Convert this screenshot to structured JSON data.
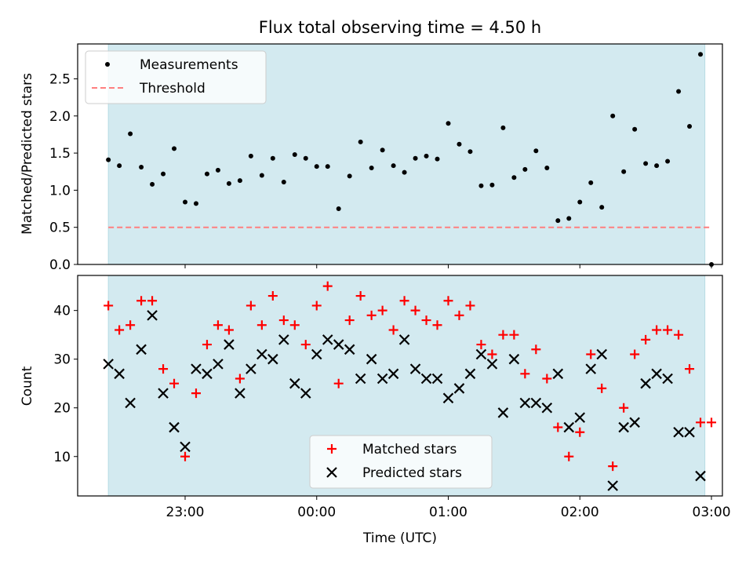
{
  "chart_data": [
    {
      "type": "scatter",
      "title": "Flux total observing time = 4.50 h",
      "xlabel": "",
      "ylabel": "Matched/Predicted stars",
      "ylim": [
        0,
        2.97
      ],
      "yticks": [
        0.0,
        0.5,
        1.0,
        1.5,
        2.0,
        2.5
      ],
      "ytick_labels": [
        "0.0",
        "0.5",
        "1.0",
        "1.5",
        "2.0",
        "2.5"
      ],
      "xlim": [
        "22:11",
        "03:05"
      ],
      "xticks": [
        "23:00",
        "00:00",
        "01:00",
        "02:00",
        "03:00"
      ],
      "shaded_span": [
        "22:25",
        "02:57"
      ],
      "shade_color": "#d3eaf0",
      "legend": {
        "position": "top-left",
        "entries": [
          "Measurements",
          "Threshold"
        ]
      },
      "series": [
        {
          "name": "Measurements",
          "marker": "dot",
          "color": "#000000",
          "points": [
            [
              "22:25",
              1.41
            ],
            [
              "22:30",
              1.33
            ],
            [
              "22:35",
              1.76
            ],
            [
              "22:40",
              1.31
            ],
            [
              "22:45",
              1.08
            ],
            [
              "22:50",
              1.22
            ],
            [
              "22:55",
              1.56
            ],
            [
              "23:00",
              0.84
            ],
            [
              "23:05",
              0.82
            ],
            [
              "23:10",
              1.22
            ],
            [
              "23:15",
              1.27
            ],
            [
              "23:20",
              1.09
            ],
            [
              "23:25",
              1.13
            ],
            [
              "23:30",
              1.46
            ],
            [
              "23:35",
              1.2
            ],
            [
              "23:40",
              1.43
            ],
            [
              "23:45",
              1.11
            ],
            [
              "23:50",
              1.48
            ],
            [
              "23:55",
              1.43
            ],
            [
              "00:00",
              1.32
            ],
            [
              "00:05",
              1.32
            ],
            [
              "00:10",
              0.75
            ],
            [
              "00:15",
              1.19
            ],
            [
              "00:20",
              1.65
            ],
            [
              "00:25",
              1.3
            ],
            [
              "00:30",
              1.54
            ],
            [
              "00:35",
              1.33
            ],
            [
              "00:40",
              1.24
            ],
            [
              "00:45",
              1.43
            ],
            [
              "00:50",
              1.46
            ],
            [
              "00:55",
              1.42
            ],
            [
              "01:00",
              1.9
            ],
            [
              "01:05",
              1.62
            ],
            [
              "01:10",
              1.52
            ],
            [
              "01:15",
              1.06
            ],
            [
              "01:20",
              1.07
            ],
            [
              "01:25",
              1.84
            ],
            [
              "01:30",
              1.17
            ],
            [
              "01:35",
              1.28
            ],
            [
              "01:40",
              1.53
            ],
            [
              "01:45",
              1.3
            ],
            [
              "01:50",
              0.59
            ],
            [
              "01:55",
              0.62
            ],
            [
              "02:00",
              0.84
            ],
            [
              "02:05",
              1.1
            ],
            [
              "02:10",
              0.77
            ],
            [
              "02:15",
              2.0
            ],
            [
              "02:20",
              1.25
            ],
            [
              "02:25",
              1.82
            ],
            [
              "02:30",
              1.36
            ],
            [
              "02:35",
              1.33
            ],
            [
              "02:40",
              1.39
            ],
            [
              "02:45",
              2.33
            ],
            [
              "02:50",
              1.86
            ],
            [
              "02:55",
              2.83
            ],
            [
              "03:00",
              0.0
            ]
          ]
        },
        {
          "name": "Threshold",
          "marker": "dashed-line",
          "color": "#ff7f7f",
          "value": 0.5,
          "x_range": [
            "22:25",
            "03:00"
          ]
        }
      ]
    },
    {
      "type": "scatter",
      "title": "",
      "xlabel": "Time (UTC)",
      "ylabel": "Count",
      "ylim": [
        1.9,
        47.2
      ],
      "yticks": [
        10,
        20,
        30,
        40
      ],
      "ytick_labels": [
        "10",
        "20",
        "30",
        "40"
      ],
      "xlim": [
        "22:11",
        "03:05"
      ],
      "xticks": [
        "23:00",
        "00:00",
        "01:00",
        "02:00",
        "03:00"
      ],
      "xtick_labels": [
        "23:00",
        "00:00",
        "01:00",
        "02:00",
        "03:00"
      ],
      "shaded_span": [
        "22:25",
        "02:57"
      ],
      "shade_color": "#d3eaf0",
      "legend": {
        "position": "lower-center",
        "entries": [
          "Matched stars",
          "Predicted stars"
        ]
      },
      "series": [
        {
          "name": "Matched stars",
          "marker": "plus",
          "color": "#ff0000",
          "points": [
            [
              "22:25",
              41
            ],
            [
              "22:30",
              36
            ],
            [
              "22:35",
              37
            ],
            [
              "22:40",
              42
            ],
            [
              "22:45",
              42
            ],
            [
              "22:50",
              28
            ],
            [
              "22:55",
              25
            ],
            [
              "23:00",
              10
            ],
            [
              "23:05",
              23
            ],
            [
              "23:10",
              33
            ],
            [
              "23:15",
              37
            ],
            [
              "23:20",
              36
            ],
            [
              "23:25",
              26
            ],
            [
              "23:30",
              41
            ],
            [
              "23:35",
              37
            ],
            [
              "23:40",
              43
            ],
            [
              "23:45",
              38
            ],
            [
              "23:50",
              37
            ],
            [
              "23:55",
              33
            ],
            [
              "00:00",
              41
            ],
            [
              "00:05",
              45
            ],
            [
              "00:10",
              25
            ],
            [
              "00:15",
              38
            ],
            [
              "00:20",
              43
            ],
            [
              "00:25",
              39
            ],
            [
              "00:30",
              40
            ],
            [
              "00:35",
              36
            ],
            [
              "00:40",
              42
            ],
            [
              "00:45",
              40
            ],
            [
              "00:50",
              38
            ],
            [
              "00:55",
              37
            ],
            [
              "01:00",
              42
            ],
            [
              "01:05",
              39
            ],
            [
              "01:10",
              41
            ],
            [
              "01:15",
              33
            ],
            [
              "01:20",
              31
            ],
            [
              "01:25",
              35
            ],
            [
              "01:30",
              35
            ],
            [
              "01:35",
              27
            ],
            [
              "01:40",
              32
            ],
            [
              "01:45",
              26
            ],
            [
              "01:50",
              16
            ],
            [
              "01:55",
              10
            ],
            [
              "02:00",
              15
            ],
            [
              "02:05",
              31
            ],
            [
              "02:10",
              24
            ],
            [
              "02:15",
              8
            ],
            [
              "02:20",
              20
            ],
            [
              "02:25",
              31
            ],
            [
              "02:30",
              34
            ],
            [
              "02:35",
              36
            ],
            [
              "02:40",
              36
            ],
            [
              "02:45",
              35
            ],
            [
              "02:50",
              28
            ],
            [
              "02:55",
              17
            ],
            [
              "03:00",
              17
            ]
          ]
        },
        {
          "name": "Predicted stars",
          "marker": "x",
          "color": "#000000",
          "points": [
            [
              "22:25",
              29
            ],
            [
              "22:30",
              27
            ],
            [
              "22:35",
              21
            ],
            [
              "22:40",
              32
            ],
            [
              "22:45",
              39
            ],
            [
              "22:50",
              23
            ],
            [
              "22:55",
              16
            ],
            [
              "23:00",
              12
            ],
            [
              "23:05",
              28
            ],
            [
              "23:10",
              27
            ],
            [
              "23:15",
              29
            ],
            [
              "23:20",
              33
            ],
            [
              "23:25",
              23
            ],
            [
              "23:30",
              28
            ],
            [
              "23:35",
              31
            ],
            [
              "23:40",
              30
            ],
            [
              "23:45",
              34
            ],
            [
              "23:50",
              25
            ],
            [
              "23:55",
              23
            ],
            [
              "00:00",
              31
            ],
            [
              "00:05",
              34
            ],
            [
              "00:10",
              33
            ],
            [
              "00:15",
              32
            ],
            [
              "00:20",
              26
            ],
            [
              "00:25",
              30
            ],
            [
              "00:30",
              26
            ],
            [
              "00:35",
              27
            ],
            [
              "00:40",
              34
            ],
            [
              "00:45",
              28
            ],
            [
              "00:50",
              26
            ],
            [
              "00:55",
              26
            ],
            [
              "01:00",
              22
            ],
            [
              "01:05",
              24
            ],
            [
              "01:10",
              27
            ],
            [
              "01:15",
              31
            ],
            [
              "01:20",
              29
            ],
            [
              "01:25",
              19
            ],
            [
              "01:30",
              30
            ],
            [
              "01:35",
              21
            ],
            [
              "01:40",
              21
            ],
            [
              "01:45",
              20
            ],
            [
              "01:50",
              27
            ],
            [
              "01:55",
              16
            ],
            [
              "02:00",
              18
            ],
            [
              "02:05",
              28
            ],
            [
              "02:10",
              31
            ],
            [
              "02:15",
              4
            ],
            [
              "02:20",
              16
            ],
            [
              "02:25",
              17
            ],
            [
              "02:30",
              25
            ],
            [
              "02:35",
              27
            ],
            [
              "02:40",
              26
            ],
            [
              "02:45",
              15
            ],
            [
              "02:50",
              15
            ],
            [
              "02:55",
              6
            ]
          ]
        }
      ]
    }
  ]
}
